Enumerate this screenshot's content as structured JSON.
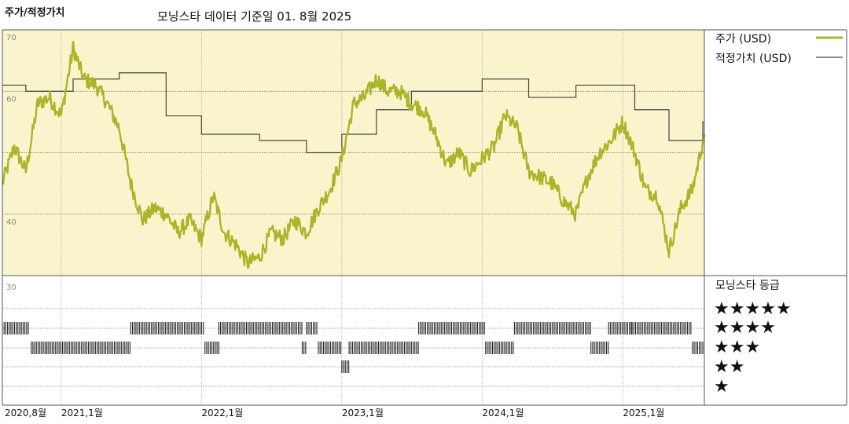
{
  "header": {
    "title": "주가/적정가치",
    "subtitle": "모닝스타 데이터 기준일 01. 8월 2025"
  },
  "legend": {
    "price_label": "주가 (USD)",
    "fair_label": "적정가치 (USD)",
    "rating_title": "모닝스타 등급",
    "stars": [
      "★★★★★",
      "★★★★",
      "★★★",
      "★★",
      "★"
    ]
  },
  "colors": {
    "price": "#a9b52a",
    "fair": "#444444",
    "plot_bg": "#faf4cc",
    "rating_bar": "#222222"
  },
  "chart_data": {
    "type": "line",
    "title": "주가/적정가치",
    "subtitle": "모닝스타 데이터 기준일 01. 8월 2025",
    "ylim": [
      30,
      70
    ],
    "yticks": [
      70,
      60,
      40,
      30
    ],
    "grid_y": [
      60,
      50,
      40
    ],
    "x_range": [
      "2020-08-01",
      "2025-08-01"
    ],
    "x_ticks": [
      {
        "date": "2020-08-01",
        "label": "2020,8월"
      },
      {
        "date": "2021-01-01",
        "label": "2021,1월"
      },
      {
        "date": "2022-01-01",
        "label": "2022,1월"
      },
      {
        "date": "2023-01-01",
        "label": "2023,1월"
      },
      {
        "date": "2024-01-01",
        "label": "2024,1월"
      },
      {
        "date": "2025-01-01",
        "label": "2025,1월"
      }
    ],
    "series": [
      {
        "name": "주가 (USD)",
        "x": [
          "2020-08-01",
          "2020-09-01",
          "2020-10-01",
          "2020-11-01",
          "2020-12-01",
          "2021-01-01",
          "2021-02-01",
          "2021-03-01",
          "2021-04-01",
          "2021-05-01",
          "2021-06-01",
          "2021-07-01",
          "2021-08-01",
          "2021-09-01",
          "2021-10-01",
          "2021-11-01",
          "2021-12-01",
          "2022-01-01",
          "2022-02-01",
          "2022-03-01",
          "2022-04-01",
          "2022-05-01",
          "2022-06-01",
          "2022-07-01",
          "2022-08-01",
          "2022-09-01",
          "2022-10-01",
          "2022-11-01",
          "2022-12-01",
          "2023-01-01",
          "2023-02-01",
          "2023-03-01",
          "2023-04-01",
          "2023-05-01",
          "2023-06-01",
          "2023-07-01",
          "2023-08-01",
          "2023-09-01",
          "2023-10-01",
          "2023-11-01",
          "2023-12-01",
          "2024-01-01",
          "2024-02-01",
          "2024-03-01",
          "2024-04-01",
          "2024-05-01",
          "2024-06-01",
          "2024-07-01",
          "2024-08-01",
          "2024-09-01",
          "2024-10-01",
          "2024-11-01",
          "2024-12-01",
          "2025-01-01",
          "2025-02-01",
          "2025-03-01",
          "2025-04-01",
          "2025-05-01",
          "2025-06-01",
          "2025-07-01",
          "2025-08-01"
        ],
        "y": [
          45,
          51,
          47,
          58,
          59,
          56,
          67,
          62,
          61,
          58,
          54,
          45,
          39,
          41,
          40,
          37,
          39,
          36,
          43,
          37,
          35,
          32,
          33,
          37,
          36,
          39,
          37,
          41,
          44,
          49,
          58,
          59,
          62,
          60,
          60,
          58,
          57,
          53,
          48,
          50,
          47,
          49,
          51,
          56,
          54,
          47,
          46,
          45,
          42,
          40,
          46,
          50,
          52,
          55,
          50,
          44,
          43,
          34,
          41,
          44,
          53
        ],
        "color": "#a9b52a"
      },
      {
        "name": "적정가치 (USD)",
        "steps": [
          {
            "from": "2020-08-01",
            "value": 61
          },
          {
            "from": "2020-10-01",
            "value": 60
          },
          {
            "from": "2021-02-01",
            "value": 62
          },
          {
            "from": "2021-06-01",
            "value": 63
          },
          {
            "from": "2021-10-01",
            "value": 56
          },
          {
            "from": "2022-01-01",
            "value": 53
          },
          {
            "from": "2022-06-01",
            "value": 52
          },
          {
            "from": "2022-10-01",
            "value": 50
          },
          {
            "from": "2023-01-01",
            "value": 53
          },
          {
            "from": "2023-04-01",
            "value": 57
          },
          {
            "from": "2023-07-01",
            "value": 60
          },
          {
            "from": "2024-01-01",
            "value": 62
          },
          {
            "from": "2024-05-01",
            "value": 59
          },
          {
            "from": "2024-09-01",
            "value": 61
          },
          {
            "from": "2025-02-01",
            "value": 57
          },
          {
            "from": "2025-05-01",
            "value": 52
          },
          {
            "from": "2025-07-28",
            "value": 55
          },
          {
            "from": "2025-08-01",
            "value": 55
          }
        ],
        "color": "#444444"
      }
    ],
    "rating": {
      "title": "모닝스타 등급",
      "levels": [
        5,
        4,
        3,
        2,
        1
      ],
      "periods": [
        {
          "from": "2020-08-01",
          "to": "2020-10-10",
          "stars": 4
        },
        {
          "from": "2020-10-15",
          "to": "2020-11-25",
          "stars": 3
        },
        {
          "from": "2020-11-25",
          "to": "2021-07-01",
          "stars": 3
        },
        {
          "from": "2021-07-01",
          "to": "2022-01-10",
          "stars": 4
        },
        {
          "from": "2022-01-10",
          "to": "2022-02-15",
          "stars": 3
        },
        {
          "from": "2022-02-15",
          "to": "2022-09-20",
          "stars": 4
        },
        {
          "from": "2022-09-20",
          "to": "2022-10-01",
          "stars": 3
        },
        {
          "from": "2022-10-01",
          "to": "2022-11-01",
          "stars": 4
        },
        {
          "from": "2022-11-01",
          "to": "2023-01-01",
          "stars": 3
        },
        {
          "from": "2023-01-01",
          "to": "2023-01-20",
          "stars": 2
        },
        {
          "from": "2023-01-20",
          "to": "2023-07-20",
          "stars": 3
        },
        {
          "from": "2023-07-20",
          "to": "2024-01-10",
          "stars": 4
        },
        {
          "from": "2024-01-10",
          "to": "2024-03-25",
          "stars": 3
        },
        {
          "from": "2024-03-25",
          "to": "2024-10-10",
          "stars": 4
        },
        {
          "from": "2024-10-10",
          "to": "2024-11-25",
          "stars": 3
        },
        {
          "from": "2024-11-25",
          "to": "2025-01-25",
          "stars": 4
        },
        {
          "from": "2025-01-25",
          "to": "2025-07-01",
          "stars": 4
        },
        {
          "from": "2025-07-01",
          "to": "2025-08-01",
          "stars": 3
        }
      ]
    },
    "grid": true,
    "legend_position": "right"
  }
}
